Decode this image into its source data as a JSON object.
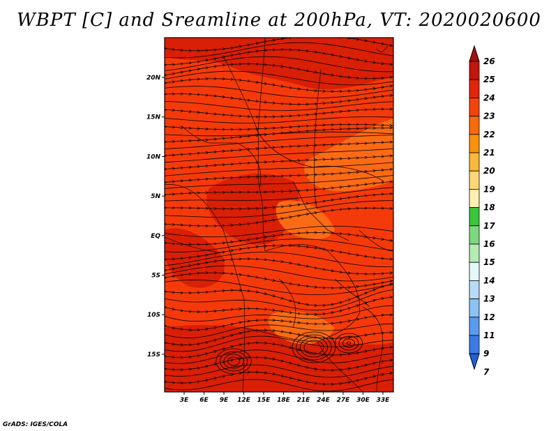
{
  "title": "WBPT [C] and Sreamline at 200hPa, VT: 2020020600",
  "credit": "GrADS: IGES/COLA",
  "map": {
    "x_ticks": [
      "3E",
      "6E",
      "9E",
      "12E",
      "15E",
      "18E",
      "21E",
      "24E",
      "27E",
      "30E",
      "33E"
    ],
    "y_ticks": [
      "20N",
      "15N",
      "10N",
      "5N",
      "EQ",
      "5S",
      "10S",
      "15S"
    ],
    "background_color": "#f43a0a",
    "dark_region_color": "#d91f06",
    "light_region_color": "#fb6a14"
  },
  "colorbar": {
    "levels": [
      "26",
      "25",
      "24",
      "23",
      "22",
      "21",
      "20",
      "19",
      "18",
      "17",
      "16",
      "15",
      "14",
      "13",
      "12",
      "11",
      "9",
      "7"
    ],
    "colors": [
      "#a50f08",
      "#c3150c",
      "#e0250a",
      "#f4440c",
      "#f86a0c",
      "#fb910c",
      "#fbb83a",
      "#fdd77a",
      "#fdf0b0",
      "#3cc43c",
      "#7ed87e",
      "#b4ecb4",
      "#e4f8f8",
      "#b8dcf8",
      "#8cc2f4",
      "#5a9cec",
      "#3a7ce4",
      "#2460d8"
    ]
  }
}
